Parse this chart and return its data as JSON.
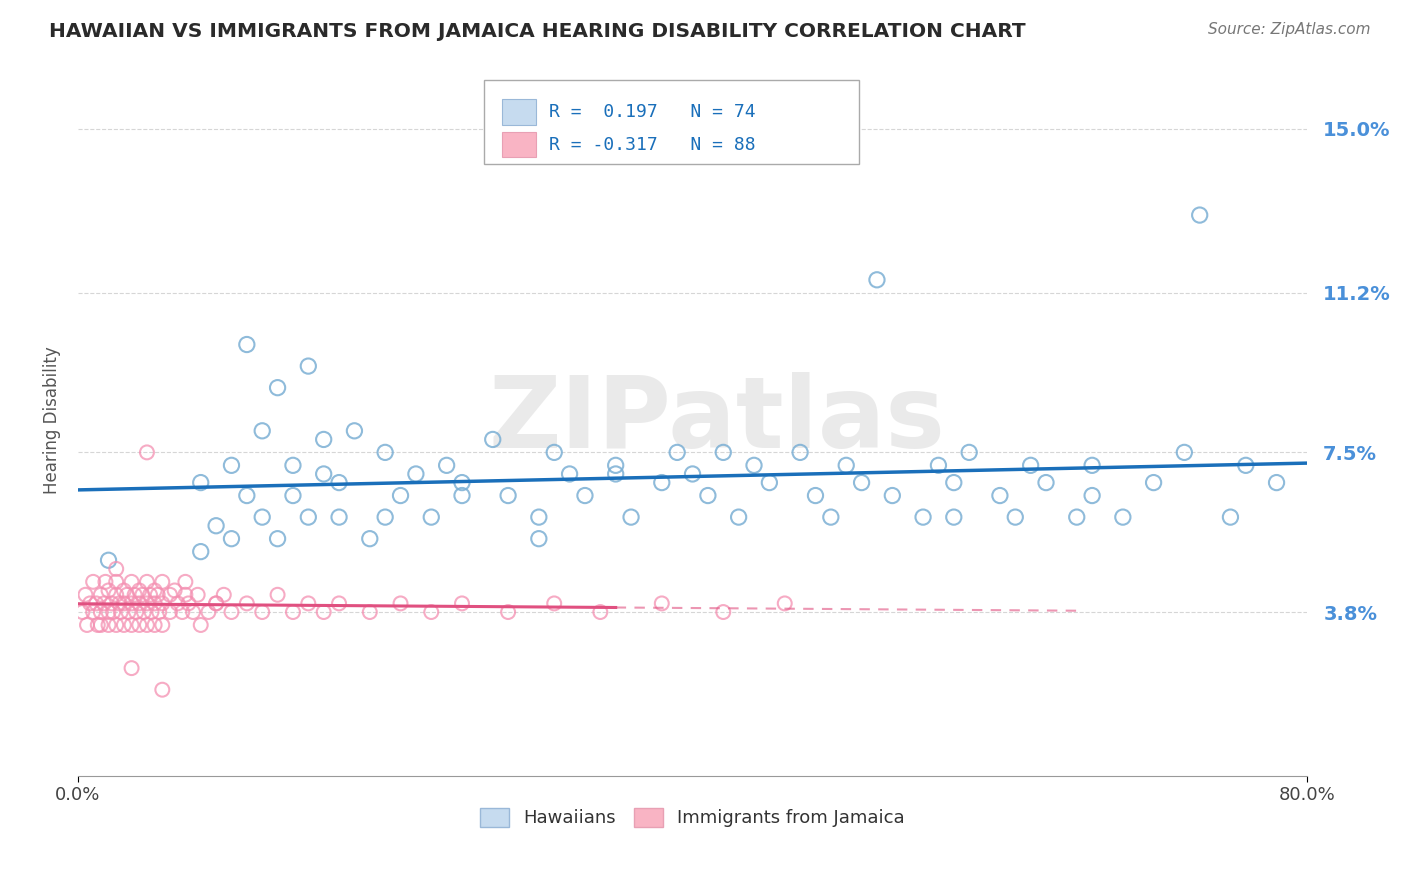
{
  "title": "HAWAIIAN VS IMMIGRANTS FROM JAMAICA HEARING DISABILITY CORRELATION CHART",
  "source": "Source: ZipAtlas.com",
  "ylabel": "Hearing Disability",
  "xlim": [
    0.0,
    0.8
  ],
  "ylim": [
    0.0,
    0.165
  ],
  "yticks": [
    0.038,
    0.075,
    0.112,
    0.15
  ],
  "ytick_labels": [
    "3.8%",
    "7.5%",
    "11.2%",
    "15.0%"
  ],
  "xticks": [
    0.0,
    0.8
  ],
  "xtick_labels": [
    "0.0%",
    "80.0%"
  ],
  "hawaiians_R": 0.197,
  "hawaiians_N": 74,
  "jamaica_R": -0.317,
  "jamaica_N": 88,
  "hawaii_dot_color": "#7bafd4",
  "jamaica_dot_color": "#f48fb1",
  "hawaii_legend_fill": "#c6dbef",
  "jamaica_legend_fill": "#f9b4c4",
  "trend_hawaii_color": "#1a6fba",
  "trend_jamaica_color": "#e05080",
  "legend_text_color": "#1a6fba",
  "background_color": "#ffffff",
  "watermark": "ZIPatlas",
  "grid_color": "#cccccc",
  "ytick_color": "#4a90d9"
}
